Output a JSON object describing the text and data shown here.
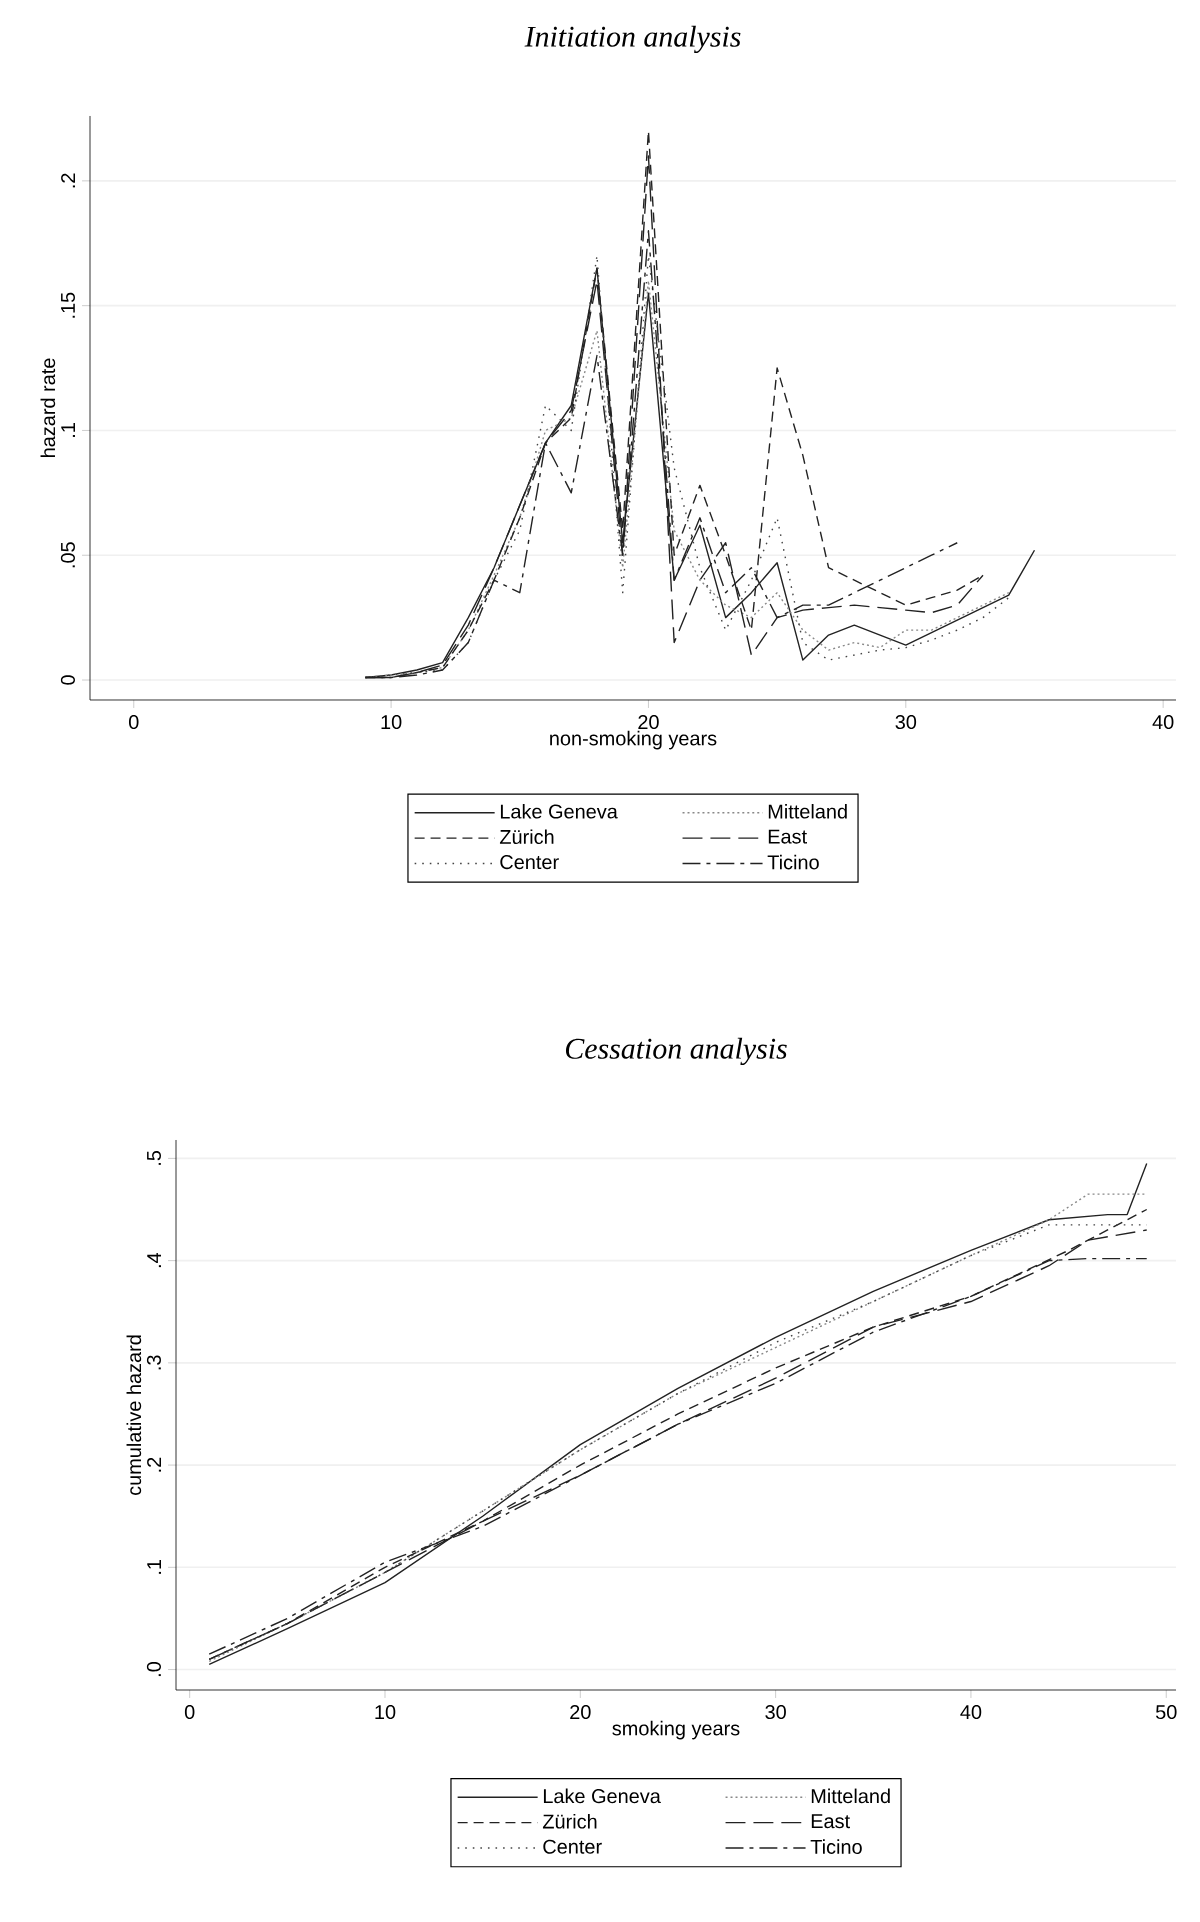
{
  "chart_data": [
    {
      "type": "line",
      "title": "*Initiation analysis*",
      "xlabel": "non-smoking years",
      "ylabel": "hazard rate",
      "xlim": [
        -1.7,
        40.5
      ],
      "ylim": [
        -0.008,
        0.226
      ],
      "xticks": [
        0,
        10,
        20,
        30,
        40
      ],
      "yticks": [
        {
          "value": 0,
          "label": "0"
        },
        {
          "value": 0.05,
          "label": ".05"
        },
        {
          "value": 0.1,
          "label": ".1"
        },
        {
          "value": 0.15,
          "label": ".15"
        },
        {
          "value": 0.2,
          "label": ".2"
        }
      ],
      "grid": "y",
      "legend": "bottom",
      "series": [
        {
          "name": "Lake Geneva",
          "color": "#222222",
          "line_style": "solid",
          "x": [
            9,
            10,
            11,
            12,
            13,
            14,
            15,
            16,
            17,
            18,
            19,
            20,
            21,
            22,
            23,
            24,
            25,
            26,
            27,
            28,
            29,
            30,
            31,
            32,
            33,
            34,
            35
          ],
          "values": [
            0.001,
            0.002,
            0.004,
            0.007,
            0.025,
            0.045,
            0.07,
            0.095,
            0.11,
            0.165,
            0.055,
            0.155,
            0.04,
            0.062,
            0.025,
            0.035,
            0.047,
            0.008,
            0.018,
            0.022,
            0.018,
            0.014,
            0.019,
            0.024,
            0.029,
            0.034,
            0.052
          ]
        },
        {
          "name": "Mitteland",
          "color": "#888888",
          "line_style": "dotted",
          "x": [
            9,
            10,
            11,
            12,
            13,
            14,
            15,
            16,
            17,
            18,
            19,
            20,
            21,
            22,
            23,
            24,
            25,
            26,
            27,
            28,
            29,
            30,
            31,
            32,
            33,
            34
          ],
          "values": [
            0.001,
            0.002,
            0.003,
            0.005,
            0.02,
            0.042,
            0.065,
            0.1,
            0.105,
            0.14,
            0.045,
            0.16,
            0.06,
            0.04,
            0.03,
            0.025,
            0.035,
            0.02,
            0.012,
            0.015,
            0.013,
            0.02,
            0.02,
            0.025,
            0.03,
            0.035
          ]
        },
        {
          "name": "Zürich",
          "color": "#222222",
          "line_style": "dashed",
          "x": [
            9,
            10,
            11,
            12,
            13,
            14,
            15,
            16,
            17,
            18,
            19,
            20,
            21,
            22,
            23,
            24,
            25,
            26,
            27,
            28,
            29,
            30,
            31,
            32,
            33
          ],
          "values": [
            0.001,
            0.001,
            0.003,
            0.005,
            0.02,
            0.04,
            0.065,
            0.095,
            0.105,
            0.165,
            0.06,
            0.22,
            0.05,
            0.078,
            0.05,
            0.02,
            0.125,
            0.09,
            0.045,
            0.04,
            0.035,
            0.03,
            0.033,
            0.036,
            0.042
          ]
        },
        {
          "name": "East",
          "color": "#222222",
          "line_style": "longdashed",
          "x": [
            9,
            10,
            11,
            12,
            13,
            14,
            15,
            16,
            17,
            18,
            19,
            20,
            21,
            22,
            23,
            24,
            25,
            26,
            27,
            28,
            29,
            30,
            31,
            32,
            33
          ],
          "values": [
            0.001,
            0.001,
            0.003,
            0.006,
            0.022,
            0.045,
            0.07,
            0.095,
            0.108,
            0.16,
            0.05,
            0.21,
            0.015,
            0.04,
            0.055,
            0.01,
            0.025,
            0.028,
            0.029,
            0.03,
            0.029,
            0.028,
            0.027,
            0.03,
            0.042
          ]
        },
        {
          "name": "Center",
          "color": "#444444",
          "line_style": "sparsedotted",
          "x": [
            9,
            10,
            11,
            12,
            13,
            14,
            15,
            16,
            17,
            18,
            19,
            20,
            21,
            22,
            23,
            24,
            25,
            26,
            27,
            28,
            29,
            30,
            31,
            32,
            33,
            34
          ],
          "values": [
            0.001,
            0.002,
            0.003,
            0.004,
            0.015,
            0.04,
            0.06,
            0.11,
            0.1,
            0.17,
            0.035,
            0.17,
            0.085,
            0.045,
            0.02,
            0.04,
            0.065,
            0.015,
            0.008,
            0.01,
            0.012,
            0.013,
            0.016,
            0.02,
            0.025,
            0.033
          ]
        },
        {
          "name": "Ticino",
          "color": "#222222",
          "line_style": "dashdot",
          "x": [
            9,
            10,
            11,
            12,
            13,
            14,
            15,
            16,
            17,
            18,
            19,
            20,
            21,
            22,
            23,
            24,
            25,
            26,
            27,
            28,
            29,
            30,
            31,
            32
          ],
          "values": [
            0.001,
            0.001,
            0.002,
            0.004,
            0.015,
            0.04,
            0.035,
            0.095,
            0.075,
            0.13,
            0.05,
            0.18,
            0.04,
            0.065,
            0.035,
            0.045,
            0.025,
            0.03,
            0.03,
            0.035,
            0.04,
            0.045,
            0.05,
            0.055
          ]
        }
      ]
    },
    {
      "type": "line",
      "title": "*Cessation analysis*",
      "xlabel": "smoking years",
      "ylabel": "cumulative hazard",
      "xlim": [
        -0.7,
        50.5
      ],
      "ylim": [
        -0.02,
        0.518
      ],
      "xticks": [
        0,
        10,
        20,
        30,
        40,
        50
      ],
      "yticks": [
        {
          "value": 0,
          "label": ".0"
        },
        {
          "value": 0.1,
          "label": ".1"
        },
        {
          "value": 0.2,
          "label": ".2"
        },
        {
          "value": 0.3,
          "label": ".3"
        },
        {
          "value": 0.4,
          "label": ".4"
        },
        {
          "value": 0.5,
          "label": ".5"
        }
      ],
      "grid": "y",
      "legend": "bottom",
      "series": [
        {
          "name": "Lake Geneva",
          "color": "#222222",
          "line_style": "solid",
          "x": [
            1,
            5,
            10,
            15,
            20,
            25,
            30,
            35,
            40,
            44,
            47,
            48,
            49
          ],
          "values": [
            0.005,
            0.04,
            0.085,
            0.15,
            0.22,
            0.275,
            0.325,
            0.37,
            0.41,
            0.44,
            0.445,
            0.445,
            0.495
          ]
        },
        {
          "name": "Mitteland",
          "color": "#888888",
          "line_style": "dotted",
          "x": [
            1,
            5,
            10,
            15,
            20,
            25,
            30,
            35,
            40,
            44,
            46,
            49
          ],
          "values": [
            0.008,
            0.045,
            0.095,
            0.155,
            0.215,
            0.27,
            0.315,
            0.36,
            0.405,
            0.44,
            0.465,
            0.465
          ]
        },
        {
          "name": "Zürich",
          "color": "#222222",
          "line_style": "dashed",
          "x": [
            1,
            5,
            10,
            15,
            20,
            25,
            30,
            35,
            40,
            45,
            47,
            49
          ],
          "values": [
            0.01,
            0.045,
            0.1,
            0.145,
            0.2,
            0.25,
            0.295,
            0.335,
            0.365,
            0.41,
            0.43,
            0.45
          ]
        },
        {
          "name": "East",
          "color": "#222222",
          "line_style": "longdashed",
          "x": [
            1,
            5,
            10,
            15,
            20,
            25,
            30,
            35,
            40,
            44,
            46,
            49
          ],
          "values": [
            0.01,
            0.045,
            0.095,
            0.145,
            0.19,
            0.24,
            0.285,
            0.335,
            0.36,
            0.395,
            0.42,
            0.43
          ]
        },
        {
          "name": "Center",
          "color": "#444444",
          "line_style": "sparsedotted",
          "x": [
            1,
            5,
            10,
            15,
            20,
            25,
            30,
            35,
            40,
            44,
            49
          ],
          "values": [
            0.01,
            0.045,
            0.095,
            0.155,
            0.215,
            0.27,
            0.32,
            0.36,
            0.405,
            0.435,
            0.435
          ]
        },
        {
          "name": "Ticino",
          "color": "#222222",
          "line_style": "dashdot",
          "x": [
            1,
            5,
            10,
            15,
            20,
            25,
            30,
            35,
            40,
            44,
            46,
            49
          ],
          "values": [
            0.015,
            0.05,
            0.105,
            0.14,
            0.19,
            0.24,
            0.28,
            0.33,
            0.365,
            0.4,
            0.402,
            0.402
          ]
        }
      ]
    }
  ]
}
